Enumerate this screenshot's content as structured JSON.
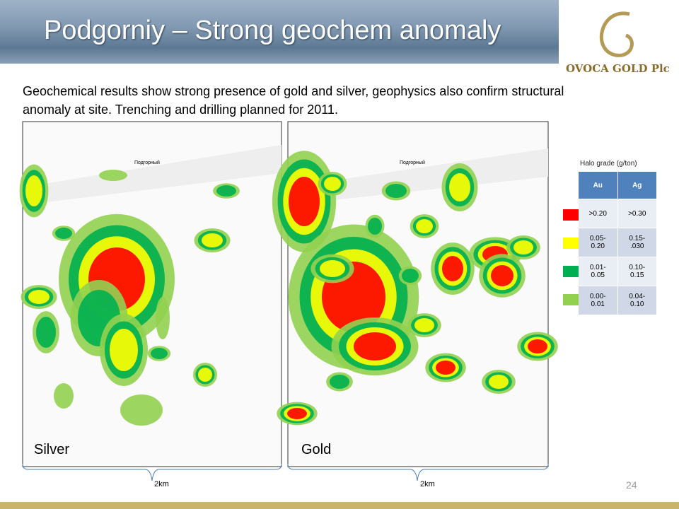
{
  "header": {
    "title": "Podgorniy – Strong geochem anomaly",
    "logo": "OVOCA GOLD Plc"
  },
  "body": "Geochemical results show strong presence of gold and silver, geophysics also confirm structural anomaly at site. Trenching and drilling planned for 2011.",
  "maps": [
    {
      "label": "Silver",
      "place_label": "Подгорный",
      "scale": "2km"
    },
    {
      "label": "Gold",
      "place_label": "Подгорный",
      "scale": "2km"
    }
  ],
  "legend": {
    "title": "Halo grade (g/ton)",
    "columns": [
      "Au",
      "Ag"
    ],
    "rows": [
      [
        ">0.20",
        ">0.30"
      ],
      [
        "0.05- 0.20",
        "0.15- .030"
      ],
      [
        "0.01- 0.05",
        "0.10- 0.15"
      ],
      [
        "0.00- 0.01",
        "0.04- 0.10"
      ]
    ]
  },
  "page_number": "24"
}
